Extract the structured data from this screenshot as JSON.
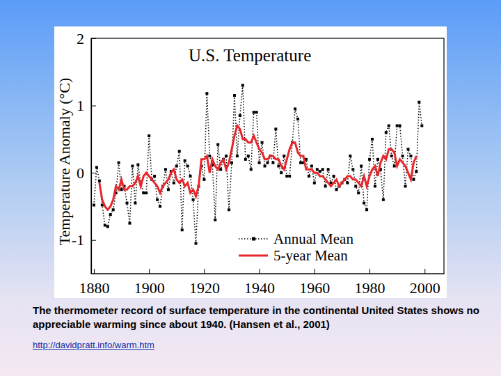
{
  "chart_data": {
    "type": "line",
    "title": "U.S. Temperature",
    "ylabel": "Temperature Anomaly (°C)",
    "caption": "The thermometer record of surface temperature in the continental United States shows no appreciable warming since about 1940. (Hansen et al., 2001)",
    "source": "http://davidpratt.info/warm.htm",
    "x": [
      1880,
      1881,
      1882,
      1883,
      1884,
      1885,
      1886,
      1887,
      1888,
      1889,
      1890,
      1891,
      1892,
      1893,
      1894,
      1895,
      1896,
      1897,
      1898,
      1899,
      1900,
      1901,
      1902,
      1903,
      1904,
      1905,
      1906,
      1907,
      1908,
      1909,
      1910,
      1911,
      1912,
      1913,
      1914,
      1915,
      1916,
      1917,
      1918,
      1919,
      1920,
      1921,
      1922,
      1923,
      1924,
      1925,
      1926,
      1927,
      1928,
      1929,
      1930,
      1931,
      1932,
      1933,
      1934,
      1935,
      1936,
      1937,
      1938,
      1939,
      1940,
      1941,
      1942,
      1943,
      1944,
      1945,
      1946,
      1947,
      1948,
      1949,
      1950,
      1951,
      1952,
      1953,
      1954,
      1955,
      1956,
      1957,
      1958,
      1959,
      1960,
      1961,
      1962,
      1963,
      1964,
      1965,
      1966,
      1967,
      1968,
      1969,
      1970,
      1971,
      1972,
      1973,
      1974,
      1975,
      1976,
      1977,
      1978,
      1979,
      1980,
      1981,
      1982,
      1983,
      1984,
      1985,
      1986,
      1987,
      1988,
      1989,
      1990,
      1991,
      1992,
      1993,
      1994,
      1995,
      1996,
      1997,
      1998,
      1999
    ],
    "series": [
      {
        "name": "Annual Mean",
        "color": "#000000",
        "marker": "square",
        "line_style": "dotted",
        "values": [
          -0.48,
          0.08,
          -0.12,
          -0.48,
          -0.78,
          -0.8,
          -0.62,
          -0.55,
          -0.3,
          0.15,
          -0.25,
          -0.2,
          -0.45,
          -0.75,
          0.1,
          -0.45,
          0.12,
          -0.15,
          -0.3,
          -0.3,
          0.55,
          -0.1,
          -0.05,
          -0.4,
          -0.5,
          -0.2,
          0.05,
          -0.25,
          0.02,
          -0.15,
          0.1,
          0.32,
          -0.85,
          0.18,
          0.1,
          -0.05,
          -0.4,
          -1.05,
          -0.2,
          0.1,
          -0.1,
          1.18,
          0.25,
          0.12,
          -0.7,
          0.42,
          0.05,
          0.2,
          0.25,
          -0.55,
          0.15,
          1.15,
          0.25,
          0.85,
          1.3,
          0.2,
          0.25,
          0.05,
          0.9,
          0.9,
          0.15,
          0.45,
          0.1,
          0.15,
          0.25,
          0.15,
          0.65,
          0.1,
          0,
          0.25,
          -0.05,
          -0.05,
          0.45,
          0.95,
          0.8,
          0.15,
          0.15,
          0.2,
          -0.05,
          0.1,
          -0.15,
          0.05,
          0.02,
          0.05,
          -0.2,
          0.05,
          -0.15,
          -0.05,
          -0.25,
          -0.2,
          -0.15,
          -0.1,
          -0.15,
          0.25,
          0.05,
          -0.2,
          -0.3,
          0.1,
          -0.45,
          -0.55,
          0.2,
          0.5,
          -0.2,
          0.2,
          0.05,
          -0.4,
          0.6,
          0.7,
          0.25,
          0.1,
          0.7,
          0.7,
          0.25,
          -0.2,
          0.35,
          0.25,
          -0.1,
          0.02,
          1.05,
          0.7
        ]
      },
      {
        "name": "5-year Mean",
        "color": "#e8262b",
        "line_style": "solid",
        "values": [
          null,
          null,
          -0.15,
          -0.4,
          -0.5,
          -0.55,
          -0.5,
          -0.4,
          -0.2,
          -0.25,
          -0.1,
          -0.25,
          -0.25,
          -0.2,
          -0.2,
          -0.15,
          -0.05,
          -0.2,
          -0.05,
          0,
          -0.05,
          -0.1,
          -0.15,
          -0.2,
          -0.3,
          -0.2,
          -0.15,
          -0.1,
          0,
          0.05,
          -0.1,
          -0.15,
          -0.1,
          -0.2,
          -0.15,
          -0.3,
          -0.25,
          -0.35,
          -0.2,
          0.2,
          0.2,
          0.25,
          0,
          0.2,
          0.1,
          0.05,
          0.15,
          0.2,
          0.05,
          0.15,
          0.35,
          0.55,
          0.7,
          0.65,
          0.5,
          0.5,
          0.45,
          0.45,
          0.55,
          0.45,
          0.35,
          0.3,
          0.2,
          0.2,
          0.25,
          0.25,
          0.2,
          0.2,
          0.1,
          0.05,
          0.2,
          0.35,
          0.45,
          0.45,
          0.3,
          0.25,
          0.25,
          0.05,
          0.05,
          0.05,
          0,
          0,
          -0.05,
          -0.05,
          -0.1,
          -0.15,
          -0.2,
          -0.15,
          -0.1,
          -0.2,
          -0.15,
          -0.1,
          -0.05,
          -0.05,
          -0.1,
          -0.1,
          -0.15,
          -0.2,
          -0.05,
          -0.2,
          -0.05,
          0.05,
          0.1,
          -0.05,
          0.15,
          0.25,
          0.2,
          0.35,
          0.35,
          0.3,
          0.1,
          0.2,
          0.15,
          0.1,
          0,
          -0.1,
          0.15,
          0.25,
          null,
          null
        ]
      }
    ],
    "xlim": [
      1879,
      2007
    ],
    "xticks": [
      1880,
      1900,
      1920,
      1940,
      1960,
      1980,
      2000
    ],
    "ylim": [
      -1.5,
      2
    ],
    "yticks": [
      -1,
      0,
      1,
      2
    ],
    "grid": false,
    "legend": "lower right"
  }
}
